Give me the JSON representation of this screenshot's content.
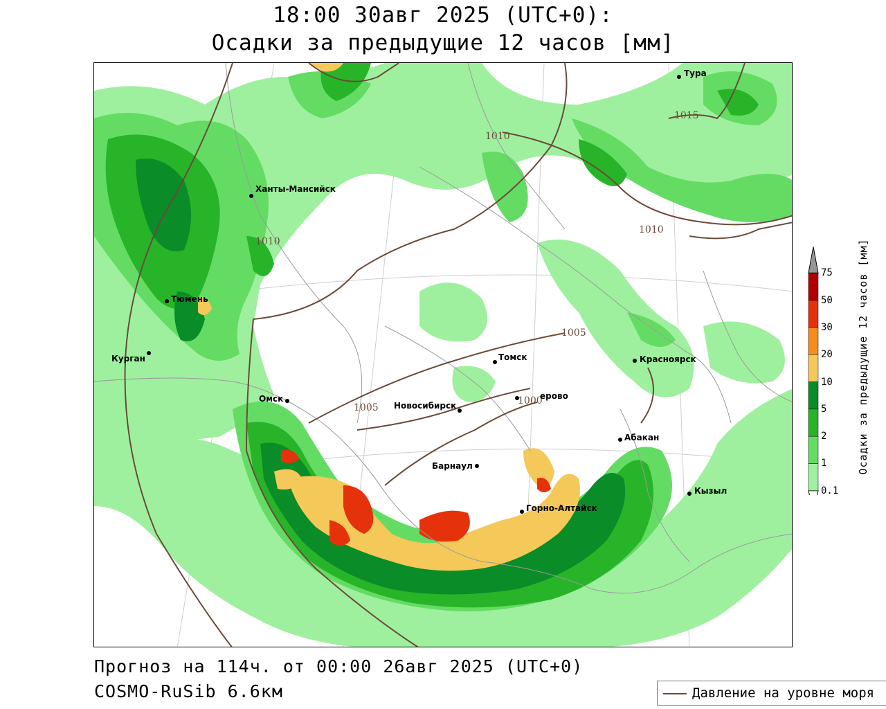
{
  "title": {
    "line1": "18:00 30авг 2025 (UTC+0):",
    "line2": "Осадки за предыдущие 12 часов [мм]"
  },
  "footer": {
    "forecast": "Прогноз на 114ч. от 00:00 26авг 2025 (UTC+0)",
    "model": "COSMO-RuSib 6.6км"
  },
  "legend": {
    "line_label": "Давление на уровне моря",
    "line_color": "#6b4a3a"
  },
  "colorbar": {
    "title": "Осадки за предыдущие 12 часов [мм]",
    "levels": [
      "0.1",
      "1",
      "2",
      "5",
      "10",
      "20",
      "30",
      "50",
      "75"
    ],
    "colors": [
      "#9ef09e",
      "#64dc64",
      "#28b428",
      "#0a8c28",
      "#f5c85a",
      "#f58c1e",
      "#e6320a",
      "#b40000",
      "#969696"
    ]
  },
  "cities": [
    {
      "id": "tura",
      "name": "Тура"
    },
    {
      "id": "khanty",
      "name": "Ханты-Мансийск"
    },
    {
      "id": "tyumen",
      "name": "Тюмень"
    },
    {
      "id": "kurgan",
      "name": "Курган"
    },
    {
      "id": "omsk",
      "name": "Омск"
    },
    {
      "id": "tomsk",
      "name": "Томск"
    },
    {
      "id": "krasnoyarsk",
      "name": "Красноярск"
    },
    {
      "id": "novosibirsk",
      "name": "Новосибирск"
    },
    {
      "id": "kemerovo",
      "name": "ерово"
    },
    {
      "id": "abakan",
      "name": "Абакан"
    },
    {
      "id": "barnaul",
      "name": "Барнаул"
    },
    {
      "id": "gorno",
      "name": "Горно-Алтайск"
    },
    {
      "id": "kyzyl",
      "name": "Кызыл"
    }
  ],
  "isobars": [
    {
      "id": "i1015",
      "label": "1015"
    },
    {
      "id": "i1010a",
      "label": "1010"
    },
    {
      "id": "i1010b",
      "label": "1010"
    },
    {
      "id": "i1010c",
      "label": "1010"
    },
    {
      "id": "i1005a",
      "label": "1005"
    },
    {
      "id": "i1005b",
      "label": "1005"
    },
    {
      "id": "i1000",
      "label": "1000"
    }
  ]
}
